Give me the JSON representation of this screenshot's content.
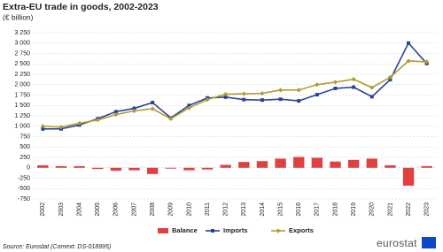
{
  "chart_data": {
    "type": "combo",
    "title": "Extra-EU trade in goods, 2002-2023",
    "subtitle": "(€ billion)",
    "categories": [
      "2002",
      "2003",
      "2004",
      "2005",
      "2006",
      "2007",
      "2008",
      "2009",
      "2010",
      "2011",
      "2012",
      "2013",
      "2014",
      "2015",
      "2016",
      "2017",
      "2018",
      "2019",
      "2020",
      "2021",
      "2022",
      "2023"
    ],
    "series": [
      {
        "name": "Balance",
        "kind": "bar",
        "color": "#e0403f",
        "values": [
          60,
          40,
          40,
          -30,
          -70,
          -60,
          -150,
          -20,
          -60,
          -40,
          70,
          140,
          160,
          220,
          260,
          240,
          150,
          190,
          220,
          60,
          -430,
          40
        ]
      },
      {
        "name": "Imports",
        "kind": "line",
        "marker": "square",
        "color": "#27459c",
        "values": [
          935,
          936,
          1030,
          1180,
          1350,
          1430,
          1570,
          1200,
          1500,
          1680,
          1700,
          1640,
          1630,
          1650,
          1610,
          1760,
          1910,
          1940,
          1710,
          2120,
          3000,
          2510
        ]
      },
      {
        "name": "Exports",
        "kind": "line",
        "marker": "diamond",
        "color": "#b39a30",
        "values": [
          1000,
          980,
          1070,
          1150,
          1280,
          1370,
          1420,
          1180,
          1440,
          1640,
          1770,
          1780,
          1790,
          1870,
          1870,
          2000,
          2060,
          2130,
          1930,
          2180,
          2570,
          2550
        ]
      }
    ],
    "ylim": [
      -750,
      3250
    ],
    "yticks": [
      -750,
      -500,
      -250,
      0,
      250,
      500,
      750,
      {
        "value": 1000,
        "label": "1 000"
      },
      {
        "value": 1250,
        "label": "1 250"
      },
      {
        "value": 1500,
        "label": "1 500"
      },
      {
        "value": 1750,
        "label": "1 750"
      },
      {
        "value": 2000,
        "label": "2 000"
      },
      {
        "value": 2250,
        "label": "2 250"
      },
      {
        "value": 2500,
        "label": "2 500"
      },
      {
        "value": 2750,
        "label": "2 750"
      },
      {
        "value": 3000,
        "label": "3 000"
      },
      {
        "value": 3250,
        "label": "3 250"
      }
    ],
    "grid": true,
    "legend": "bottom",
    "source": "Source: Eurostat (Comext: DS-018995)",
    "logo": "eurostat"
  }
}
